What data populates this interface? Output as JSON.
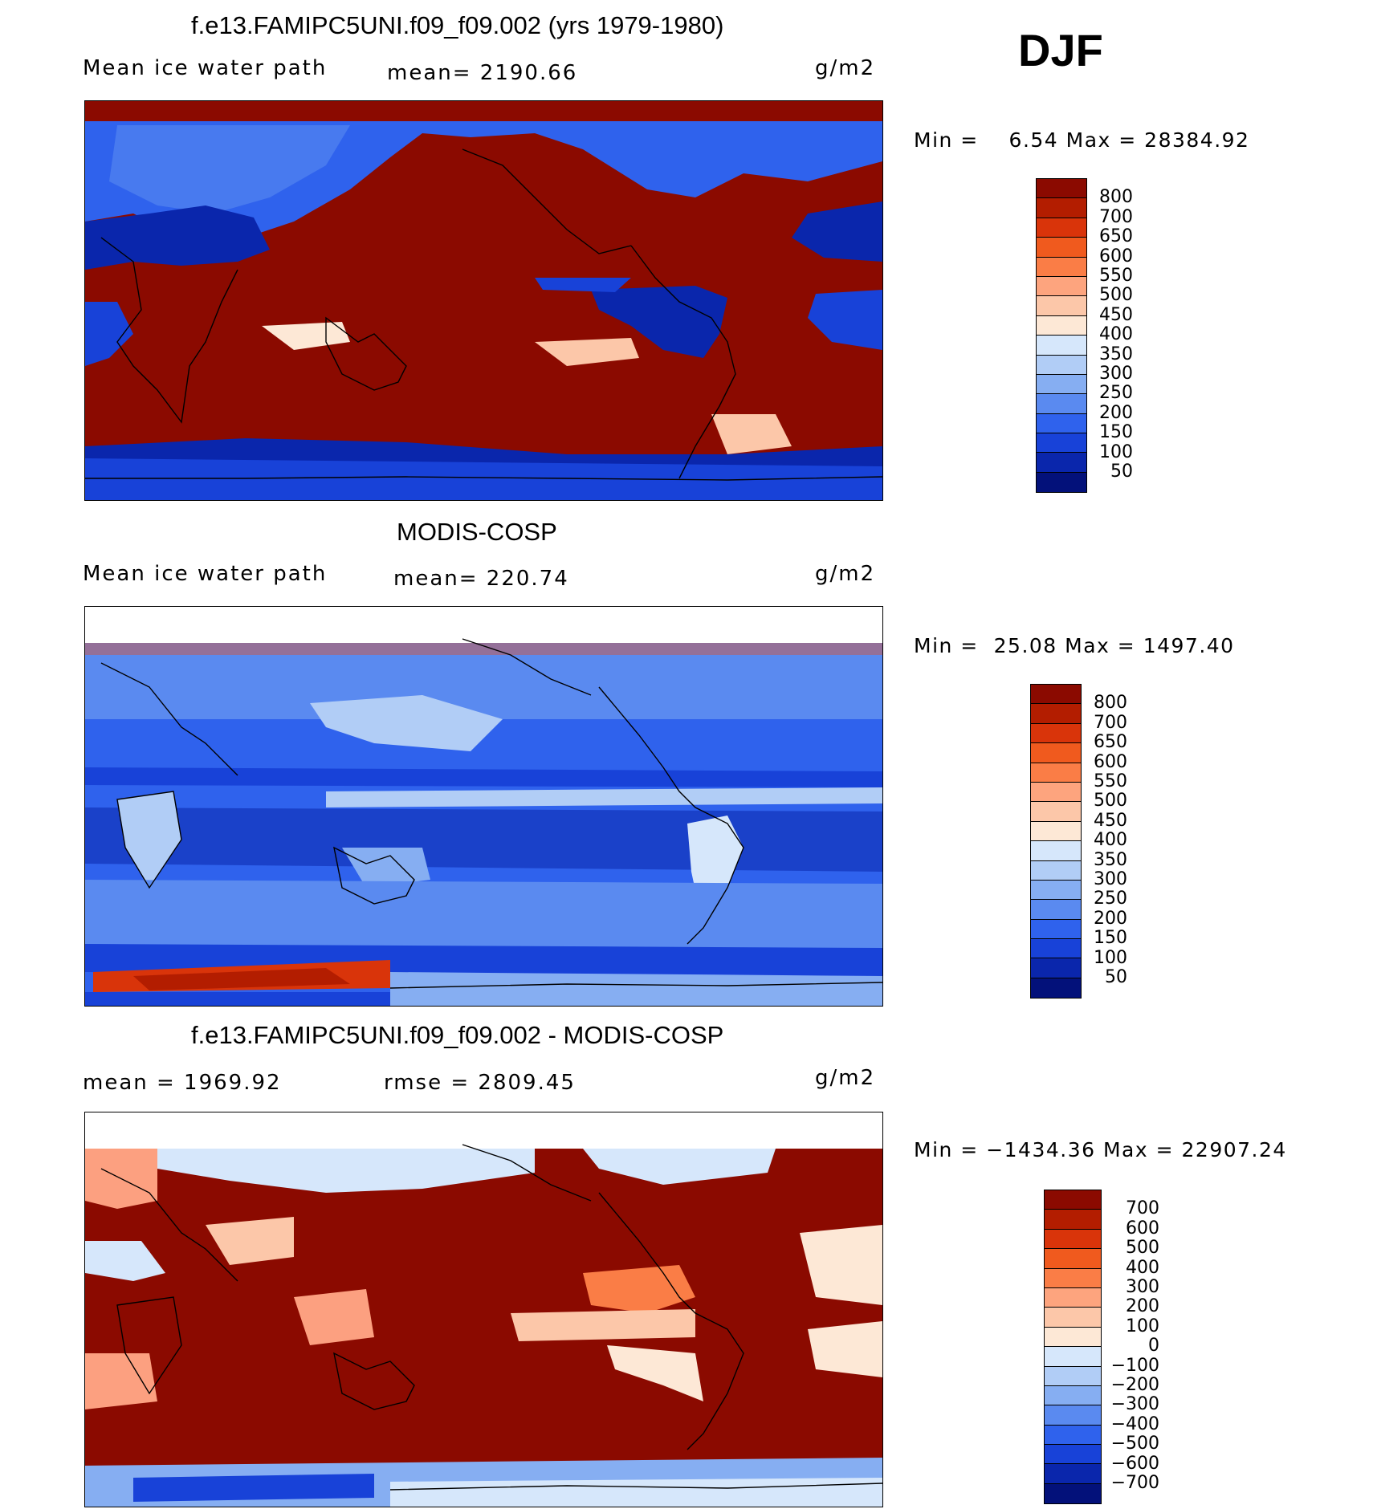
{
  "season": "DJF",
  "panels": [
    {
      "title": "f.e13.FAMIPC5UNI.f09_f09.002 (yrs 1979-1980)",
      "left_label": "Mean ice water path",
      "center_label": "mean= 2190.66",
      "units": "g/m2",
      "minmax": "Min =    6.54 Max = 28384.92",
      "levels": [
        "800",
        "700",
        "650",
        "600",
        "550",
        "500",
        "450",
        "400",
        "350",
        "300",
        "250",
        "200",
        "150",
        "100",
        "50"
      ]
    },
    {
      "title": "MODIS-COSP",
      "left_label": "Mean ice water path",
      "center_label": "mean= 220.74",
      "units": "g/m2",
      "minmax": "Min =  25.08 Max = 1497.40",
      "levels": [
        "800",
        "700",
        "650",
        "600",
        "550",
        "500",
        "450",
        "400",
        "350",
        "300",
        "250",
        "200",
        "150",
        "100",
        "50"
      ]
    },
    {
      "title": "f.e13.FAMIPC5UNI.f09_f09.002 - MODIS-COSP",
      "left_label": "mean = 1969.92",
      "center_label": "rmse = 2809.45",
      "units": "g/m2",
      "minmax": "Min = −1434.36 Max = 22907.24",
      "levels": [
        "700",
        "600",
        "500",
        "400",
        "300",
        "200",
        "100",
        "0",
        "−100",
        "−200",
        "−300",
        "−400",
        "−500",
        "−600",
        "−700"
      ]
    }
  ],
  "colors": {
    "abs_scale": [
      "#8b0a00",
      "#b31d00",
      "#d9340a",
      "#f05a1e",
      "#fa7d46",
      "#fda47e",
      "#fcc7a9",
      "#fde8d6",
      "#d6e7fb",
      "#b1cdf6",
      "#86aef2",
      "#5a8af0",
      "#2f62ed",
      "#1842d8",
      "#0a26ac",
      "#03117a"
    ],
    "diff_scale": [
      "#8b0a00",
      "#b31d00",
      "#d9340a",
      "#f05a1e",
      "#fa7d46",
      "#fda47e",
      "#fcc7a9",
      "#fde8d6",
      "#d6e7fb",
      "#b1cdf6",
      "#86aef2",
      "#5a8af0",
      "#2f62ed",
      "#1842d8",
      "#0a26ac",
      "#03117a"
    ]
  },
  "chart_data": [
    {
      "type": "heatmap",
      "title": "f.e13.FAMIPC5UNI.f09_f09.002 (yrs 1979-1980)",
      "variable": "Mean ice water path",
      "units": "g/m2",
      "mean": 2190.66,
      "min": 6.54,
      "max": 28384.92,
      "contour_levels": [
        50,
        100,
        150,
        200,
        250,
        300,
        350,
        400,
        450,
        500,
        550,
        600,
        650,
        700,
        800
      ]
    },
    {
      "type": "heatmap",
      "title": "MODIS-COSP",
      "variable": "Mean ice water path",
      "units": "g/m2",
      "mean": 220.74,
      "min": 25.08,
      "max": 1497.4,
      "contour_levels": [
        50,
        100,
        150,
        200,
        250,
        300,
        350,
        400,
        450,
        500,
        550,
        600,
        650,
        700,
        800
      ]
    },
    {
      "type": "heatmap",
      "title": "f.e13.FAMIPC5UNI.f09_f09.002 - MODIS-COSP",
      "units": "g/m2",
      "mean": 1969.92,
      "rmse": 2809.45,
      "min": -1434.36,
      "max": 22907.24,
      "contour_levels": [
        -700,
        -600,
        -500,
        -400,
        -300,
        -200,
        -100,
        0,
        100,
        200,
        300,
        400,
        500,
        600,
        700
      ]
    }
  ]
}
